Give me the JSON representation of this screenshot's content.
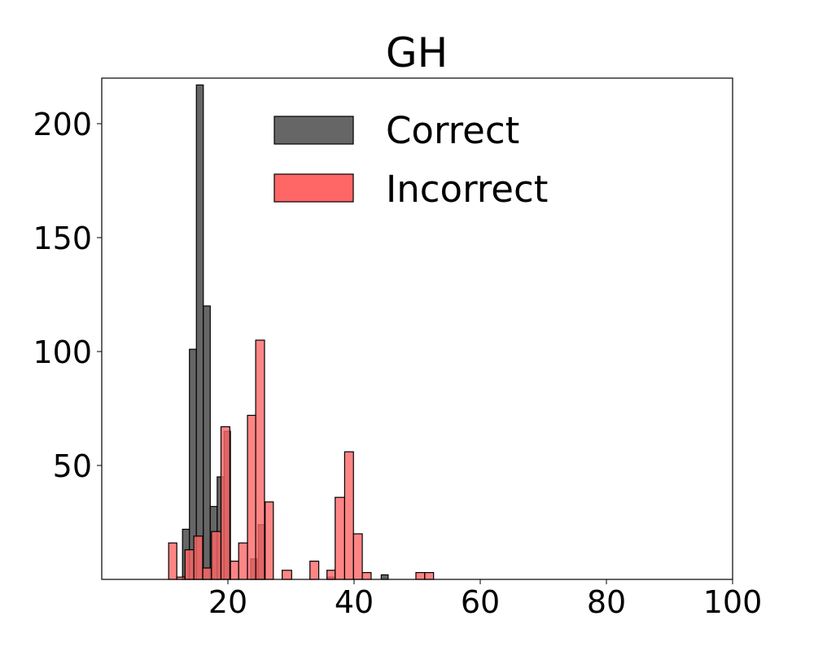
{
  "chart_data": {
    "type": "bar",
    "subtype": "overlapping-histogram",
    "title": "GH",
    "xlabel": "",
    "ylabel": "",
    "xlim": [
      0,
      100
    ],
    "ylim": [
      0,
      220
    ],
    "xticks": [
      20,
      40,
      60,
      80,
      100
    ],
    "yticks": [
      50,
      100,
      150,
      200
    ],
    "grid": false,
    "legend_position": "upper center",
    "series": [
      {
        "name": "Correct",
        "color": "#666666",
        "edgecolor": "#000000",
        "bins": [
          {
            "x0": 12.8,
            "x1": 13.9,
            "count": 22
          },
          {
            "x0": 13.9,
            "x1": 15.0,
            "count": 101
          },
          {
            "x0": 15.0,
            "x1": 16.1,
            "count": 217
          },
          {
            "x0": 16.1,
            "x1": 17.2,
            "count": 120
          },
          {
            "x0": 17.2,
            "x1": 18.3,
            "count": 32
          },
          {
            "x0": 18.3,
            "x1": 19.4,
            "count": 45
          },
          {
            "x0": 19.4,
            "x1": 20.4,
            "count": 65
          },
          {
            "x0": 23.6,
            "x1": 24.6,
            "count": 9
          },
          {
            "x0": 24.8,
            "x1": 25.8,
            "count": 24
          },
          {
            "x0": 35.8,
            "x1": 36.8,
            "count": 1
          },
          {
            "x0": 44.3,
            "x1": 45.4,
            "count": 2
          }
        ]
      },
      {
        "name": "Incorrect",
        "color": "#ff6666",
        "edgecolor": "#000000",
        "alpha": 0.8,
        "bins": [
          {
            "x0": 10.6,
            "x1": 11.9,
            "count": 16
          },
          {
            "x0": 11.9,
            "x1": 13.2,
            "count": 1
          },
          {
            "x0": 13.2,
            "x1": 14.6,
            "count": 13
          },
          {
            "x0": 14.6,
            "x1": 16.0,
            "count": 19
          },
          {
            "x0": 16.0,
            "x1": 17.4,
            "count": 5
          },
          {
            "x0": 17.4,
            "x1": 18.9,
            "count": 21
          },
          {
            "x0": 18.9,
            "x1": 20.3,
            "count": 67
          },
          {
            "x0": 20.4,
            "x1": 21.7,
            "count": 8
          },
          {
            "x0": 21.7,
            "x1": 23.1,
            "count": 16
          },
          {
            "x0": 23.1,
            "x1": 24.4,
            "count": 72
          },
          {
            "x0": 24.4,
            "x1": 25.8,
            "count": 105
          },
          {
            "x0": 25.9,
            "x1": 27.2,
            "count": 34
          },
          {
            "x0": 28.6,
            "x1": 30.1,
            "count": 4
          },
          {
            "x0": 33.0,
            "x1": 34.4,
            "count": 8
          },
          {
            "x0": 35.7,
            "x1": 37.0,
            "count": 4
          },
          {
            "x0": 37.0,
            "x1": 38.5,
            "count": 36
          },
          {
            "x0": 38.5,
            "x1": 39.9,
            "count": 56
          },
          {
            "x0": 39.9,
            "x1": 41.3,
            "count": 20
          },
          {
            "x0": 41.3,
            "x1": 42.7,
            "count": 3
          },
          {
            "x0": 49.8,
            "x1": 51.2,
            "count": 3
          },
          {
            "x0": 51.2,
            "x1": 52.6,
            "count": 3
          }
        ]
      }
    ]
  },
  "legend": {
    "items": [
      {
        "label": "Correct",
        "color": "#666666"
      },
      {
        "label": "Incorrect",
        "color": "#ff6666"
      }
    ]
  },
  "axes": {
    "xtick_labels": [
      "20",
      "40",
      "60",
      "80",
      "100"
    ],
    "ytick_labels": [
      "50",
      "100",
      "150",
      "200"
    ]
  }
}
